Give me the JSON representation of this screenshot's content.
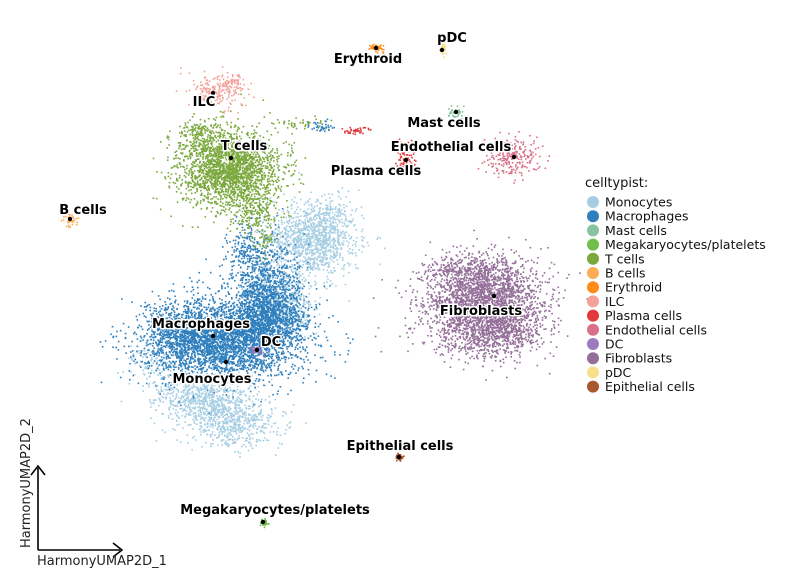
{
  "chart_data": {
    "type": "scatter",
    "title": "",
    "xlabel": "HarmonyUMAP2D_1",
    "ylabel": "HarmonyUMAP2D_2",
    "grid": false,
    "legend": {
      "title": "celltypist:",
      "placement": "right"
    },
    "series": [
      {
        "name": "Monocytes",
        "color": "#a6cee3"
      },
      {
        "name": "Macrophages",
        "color": "#2f7fbd"
      },
      {
        "name": "Mast cells",
        "color": "#88c4a0"
      },
      {
        "name": "Megakaryocytes/platelets",
        "color": "#6fbf4a"
      },
      {
        "name": "T cells",
        "color": "#7aa83d"
      },
      {
        "name": "B cells",
        "color": "#fdae55"
      },
      {
        "name": "Erythroid",
        "color": "#ff8c1a"
      },
      {
        "name": "ILC",
        "color": "#f4a19a"
      },
      {
        "name": "Plasma cells",
        "color": "#e2393a"
      },
      {
        "name": "Endothelial cells",
        "color": "#d87089"
      },
      {
        "name": "DC",
        "color": "#9b7bbd"
      },
      {
        "name": "Fibroblasts",
        "color": "#946f99"
      },
      {
        "name": "pDC",
        "color": "#f7e08a"
      },
      {
        "name": "Epithelial cells",
        "color": "#a9572d"
      }
    ],
    "cluster_labels": [
      "Erythroid",
      "pDC",
      "ILC",
      "Mast cells",
      "T cells",
      "Endothelial cells",
      "Plasma cells",
      "B cells",
      "Fibroblasts",
      "Macrophages",
      "DC",
      "Monocytes",
      "Epithelial cells",
      "Megakaryocytes/platelets"
    ]
  }
}
